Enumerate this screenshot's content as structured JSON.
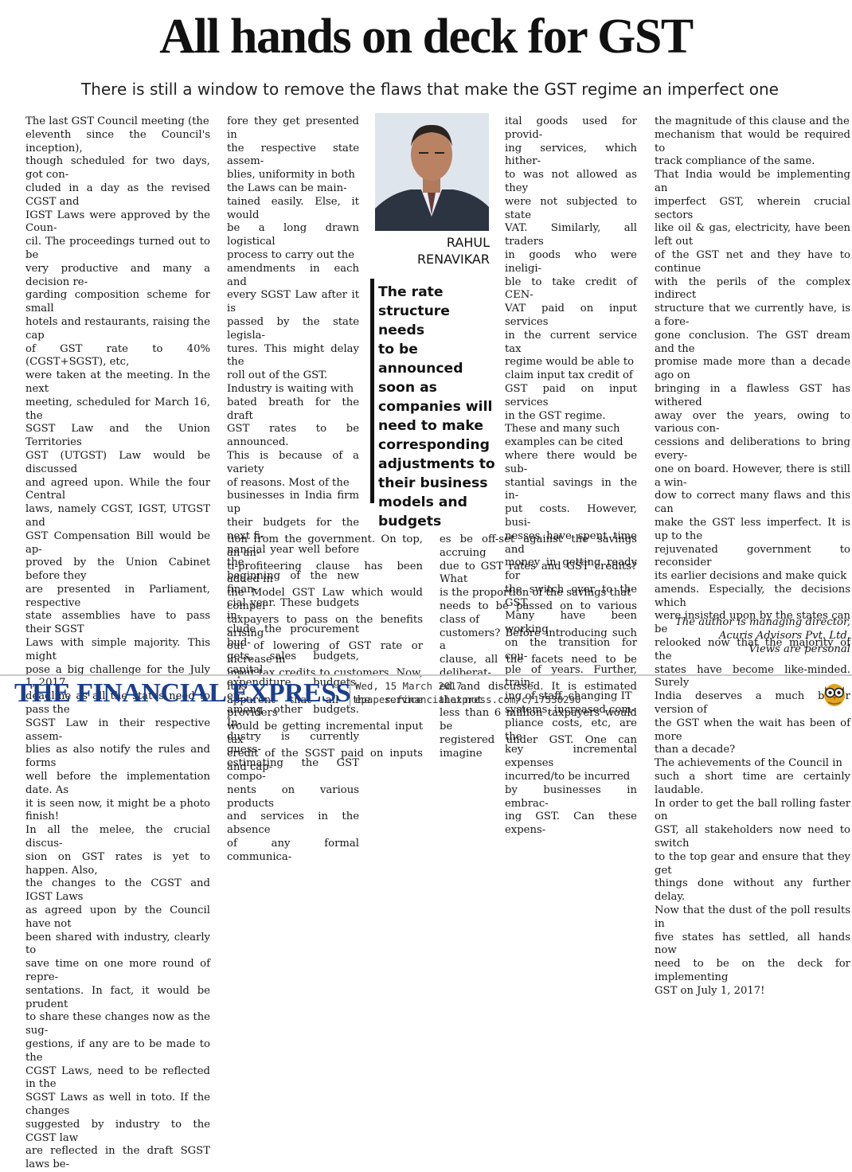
{
  "article": {
    "headline": "All hands on deck for GST",
    "deck": "There is still a window to remove the flaws that make the GST regime an imperfect one",
    "columns": [
      "    The last GST Council meeting (the\neleventh since the Council's inception),\nthough scheduled for two days, got con-\ncluded in a day as the revised CGST and\nIGST Laws were approved by the Coun-\ncil. The proceedings turned out to be\nvery productive and many a decision re-\ngarding composition scheme for small\nhotels and restaurants, raising the cap\nof GST rate to 40% (CGST+SGST), etc,\nwere taken at the meeting. In the next\nmeeting, scheduled for March 16, the\nSGST Law and the Union Territories\nGST (UTGST) Law would be discussed\nand agreed upon. While the four Central\nlaws, namely CGST, IGST, UTGST and\nGST Compensation Bill would be ap-\nproved by the Union Cabinet before they\nare presented in Parliament, respective\nstate assemblies have to pass their SGST\nLaws with simple majority. This might\npose a big challenge for the July 1, 2017,\ndeadline as all the states need to pass the\nSGST Law in their respective assem-\nblies as also notify the rules and forms\nwell before the implementation date. As\nit is seen now, it might be a photo finish!\n    In all the melee, the crucial discus-\nsion on GST rates is yet to happen. Also,\nthe changes to the CGST and IGST Laws\nas agreed upon by the Council have not\nbeen shared with industry, clearly to\nsave time on one more round of repre-\nsentations. In fact, it would be prudent\nto share these changes now as the sug-\ngestions, if any are to be made to the\nCGST Laws, need to be reflected in the\nSGST Laws as well in toto. If the changes\nsuggested by industry to the CGST law\nare reflected in the draft SGST laws be-",
      "fore they get presented in\nthe respective state assem-\nblies, uniformity in both\nthe Laws can be main-\ntained easily. Else, it would\nbe a long drawn logistical\nprocess to carry out the\namendments in each and\nevery SGST Law after it is\npassed by the state legisla-\ntures. This might delay the\nroll out of the GST.\n    Industry is waiting with\nbated breath for the draft\nGST rates to be announced.\nThis is because of a variety\nof reasons. Most of the\nbusinesses in India firm up\ntheir budgets for the next fi-\nnancial year well before the\nbeginning of the new finan-\ncial year. These budgets in-\nclude the procurement bud-\ngets, sales budgets, capital\nexpenditure budgets, etc,\namong other budgets. In-\ndustry is currently guess-\nestimating the GST compo-\nnents on various products\nand services in the absence\nof any formal communica-",
      "tion from the government. On top, an an-\nti-profiteering clause has been added in\nthe Model GST Law which would compel\ntaxpayers to pass on the benefits arising\nout of lowering of GST rate or increase in\ninput tax credits to customers. Now, it is\napparent that all the service providers\nwould be getting incremental input tax\ncredit of the SGST paid on inputs and cap-",
      "ital goods used for provid-\ning services, which hither-\nto was not allowed as they\nwere not subjected to state\nVAT. Similarly, all traders\nin goods who were ineligi-\nble to take credit of CEN-\nVAT paid on input services\nin the current service tax\nregime would be able to\nclaim input tax credit of\nGST paid on input services\nin the GST regime.\n    These and many such\nexamples can be cited\nwhere there would be sub-\nstantial savings in the in-\nput costs. However, busi-\nnesses have spent time and\nmoney in getting ready for\nthe switch over to the GST.\nMany have been working\non the transition for cou-\nple of years. Further, train-\ning of staff, changing IT\nsystems, increased com-\npliance costs, etc, are the\nkey incremental expenses\nincurred/to be incurred\nby businesses in embrac-\ning GST. Can these expens-",
      "es be off-set against the savings accruing\ndue to GST rates and GST credits? What\nis the proportion of the savings that\nneeds to be passed on to various class of\ncustomers? Before introducing such a\nclause, all the facets need to be deliberat-\ned and discussed. It is estimated that not\nless than 6 million taxpayers would be\nregistered under GST. One can imagine",
      "the magnitude of this clause and the\nmechanism that would be required to\ntrack compliance of the same.\n    That India would be implementing an\nimperfect GST, wherein crucial sectors\nlike oil & gas, electricity, have been left out\nof the GST net and they have to continue\nwith the perils of the complex indirect\nstructure that we currently have, is a fore-\ngone conclusion. The GST dream and the\npromise made more than a decade ago on\nbringing in a flawless GST has withered\naway over the years, owing to various con-\ncessions and deliberations to bring every-\none on board. However, there is still a win-\ndow to correct many flaws and this can\nmake the GST less imperfect. It is up to the\nrejuvenated government to reconsider\nits earlier decisions and make quick\namends. Especially, the decisions which\nwere insisted upon by the states can be\nrelooked now that the majority of the\nstates have become like-minded. Surely\nIndia deserves a much better version of\nthe GST when the wait has been of more\nthan a decade?\n    The achievements of the Council in\nsuch a short time are certainly laudable.\nIn order to get the ball rolling faster on\nGST, all stakeholders now need to switch\nto the top gear and ensure that they get\nthings done without any further delay.\nNow that the dust of the poll results in\nfive states has settled, all hands now\nneed to be on the deck for implementing\nGST on July 1, 2017!"
    ],
    "author_note": "The author is managing director,\nAcuris Advisors Pvt. Ltd.\nViews are personal",
    "byline": "RAHUL\nRENAVIKAR",
    "pullquote": "The rate\nstructure needs\nto be announced\nsoon as\ncompanies will\nneed to make\ncorresponding\nadjustments to\ntheir business\nmodels and\nbudgets"
  },
  "footer": {
    "masthead": "THE FINANCIAL EXPRESS",
    "date": "Wed, 15 March 2017",
    "url": "epaper.financialexpress.com/c/17530290",
    "masthead_color": "#1c3f8c"
  }
}
